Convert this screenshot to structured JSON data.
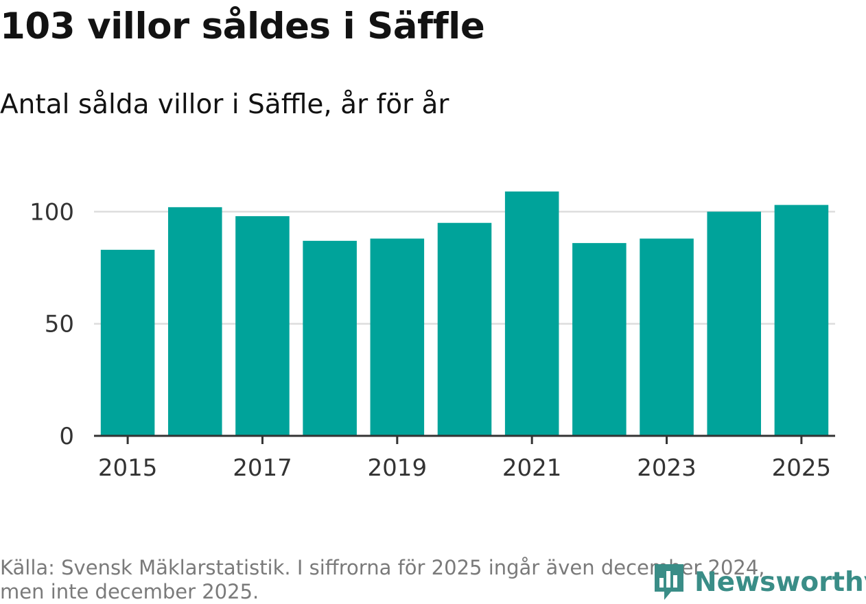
{
  "title": "103 villor såldes i Säffle",
  "subtitle": "Antal sålda villor i Säffle, år för år",
  "footer": {
    "source_line1": "Källa: Svensk Mäklarstatistik. I siffrorna för 2025 ingår även december 2024,",
    "source_line2": "men inte december 2025."
  },
  "logo": {
    "text": "Newsworthy",
    "icon": "bar-chart-logo-icon"
  },
  "colors": {
    "bar": "#00a39a",
    "grid": "#dddddd",
    "axis": "#333333",
    "brand": "#3a8d87"
  },
  "chart_data": {
    "type": "bar",
    "title": "103 villor såldes i Säffle",
    "subtitle": "Antal sålda villor i Säffle, år för år",
    "xlabel": "",
    "ylabel": "",
    "categories": [
      "2015",
      "2016",
      "2017",
      "2018",
      "2019",
      "2020",
      "2021",
      "2022",
      "2023",
      "2024",
      "2025"
    ],
    "values": [
      83,
      102,
      98,
      87,
      88,
      95,
      109,
      86,
      88,
      100,
      103
    ],
    "ylim": [
      0,
      109
    ],
    "yticks": [
      0,
      50,
      100
    ],
    "ytick_labels": [
      "0",
      "50",
      "100"
    ],
    "xtick_labels": [
      "2015",
      "2017",
      "2019",
      "2021",
      "2023",
      "2025"
    ],
    "grid": true
  }
}
